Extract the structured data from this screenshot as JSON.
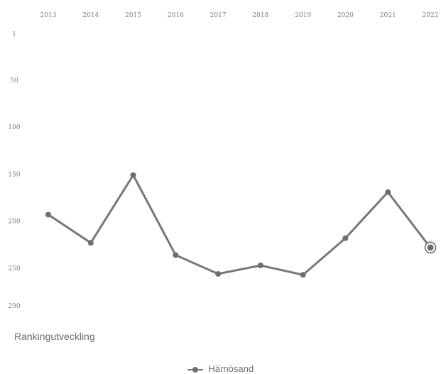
{
  "chart_data": {
    "type": "line",
    "x": [
      "2013",
      "2014",
      "2015",
      "2016",
      "2017",
      "2018",
      "2019",
      "2020",
      "2021",
      "2022"
    ],
    "series": [
      {
        "name": "Härnösand",
        "values": [
          193,
          223,
          151,
          236,
          256,
          247,
          257,
          218,
          169,
          228
        ]
      }
    ],
    "y_ticks": [
      "1",
      "50",
      "100",
      "150",
      "200",
      "250",
      "290"
    ],
    "ylim": [
      1,
      290
    ],
    "y_reversed": true,
    "x_axis_position": "top",
    "grid": false,
    "legend_position": "bottom-center",
    "colors": {
      "line": "#777777",
      "marker": "#6e6e6e",
      "text": "#7d7d7d"
    }
  },
  "caption": "Rankingutveckling"
}
